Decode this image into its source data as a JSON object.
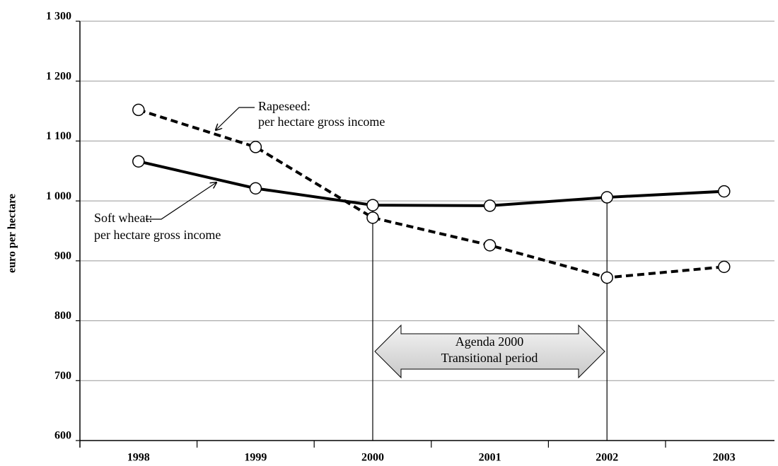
{
  "chart_data": {
    "type": "line",
    "y_label": "euro per hectare",
    "categories": [
      "1998",
      "1999",
      "2000",
      "2001",
      "2002",
      "2003"
    ],
    "series": [
      {
        "color": "#000000",
        "linestyle": "solid",
        "values": [
          1066,
          1021,
          993,
          992,
          1006,
          1016
        ]
      },
      {
        "color": "#000000",
        "linestyle": "dashed",
        "values": [
          1152,
          1090,
          972,
          926,
          872,
          890
        ]
      }
    ],
    "ylim": [
      600,
      1300
    ],
    "yticks": [
      600,
      700,
      800,
      900,
      {
        "value": 1000,
        "label": "1 000"
      },
      {
        "value": 1100,
        "label": "1 100"
      },
      {
        "value": 1200,
        "label": "1 200"
      },
      {
        "value": 1300,
        "label": "1 300"
      }
    ],
    "grid": true,
    "annotations": [
      {
        "lines": [
          "Rapeseed:",
          "per hectare gross income"
        ]
      },
      {
        "lines": [
          "Soft wheat:",
          "per hectare gross income"
        ]
      },
      {
        "lines": [
          "Agenda 2000",
          "Transitional period"
        ]
      }
    ]
  }
}
